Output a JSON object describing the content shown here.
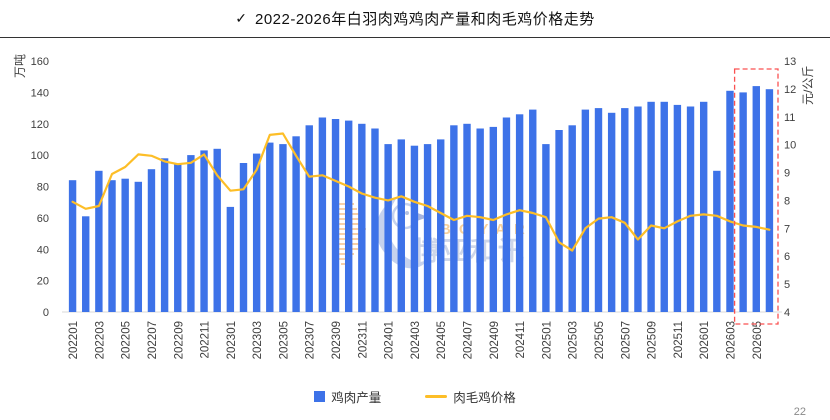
{
  "header": {
    "check": "✓",
    "title": "2022-2026年白羽肉鸡鸡肉产量和肉毛鸡价格走势"
  },
  "watermark": {
    "brand_en": "BOYAR",
    "brand_cn": "博亚和讯"
  },
  "page_number": "22",
  "chart_data": {
    "type": "bar",
    "title": "2022-2026年白羽肉鸡鸡肉产量和肉毛鸡价格走势",
    "categories": [
      "202201",
      "202202",
      "202203",
      "202204",
      "202205",
      "202206",
      "202207",
      "202208",
      "202209",
      "202210",
      "202211",
      "202212",
      "202301",
      "202302",
      "202303",
      "202304",
      "202305",
      "202306",
      "202307",
      "202308",
      "202309",
      "202310",
      "202311",
      "202312",
      "202401",
      "202402",
      "202403",
      "202404",
      "202405",
      "202406",
      "202407",
      "202408",
      "202409",
      "202410",
      "202411",
      "202412",
      "202501",
      "202502",
      "202503",
      "202504",
      "202505",
      "202506",
      "202507",
      "202508",
      "202509",
      "202510",
      "202511",
      "202512",
      "202601",
      "202602",
      "202603",
      "202604",
      "202605",
      "202606"
    ],
    "x_tick_every": 2,
    "series": [
      {
        "name": "鸡肉产量",
        "type": "bar",
        "axis": "left",
        "unit": "万吨",
        "color": "#3D72E8",
        "values": [
          84,
          61,
          90,
          84,
          85,
          83,
          91,
          98,
          94,
          100,
          103,
          104,
          67,
          95,
          101,
          108,
          107,
          112,
          119,
          124,
          123,
          122,
          120,
          117,
          107,
          110,
          106,
          107,
          110,
          119,
          120,
          117,
          118,
          124,
          126,
          129,
          107,
          116,
          119,
          129,
          130,
          127,
          130,
          131,
          134,
          134,
          132,
          131,
          134,
          90,
          141,
          140,
          144,
          142
        ]
      },
      {
        "name": "肉毛鸡价格",
        "type": "line",
        "axis": "right",
        "unit": "元/公斤",
        "color": "#FDBE27",
        "values": [
          7.95,
          7.7,
          7.8,
          8.95,
          9.2,
          9.65,
          9.6,
          9.4,
          9.3,
          9.35,
          9.65,
          8.9,
          8.35,
          8.4,
          9.1,
          10.35,
          10.4,
          9.6,
          8.85,
          8.9,
          8.7,
          8.5,
          8.25,
          8.1,
          8.0,
          8.15,
          7.95,
          7.8,
          7.55,
          7.3,
          7.45,
          7.4,
          7.3,
          7.5,
          7.65,
          7.55,
          7.4,
          6.5,
          6.2,
          7.0,
          7.35,
          7.4,
          7.2,
          6.6,
          7.1,
          7.0,
          7.25,
          7.45,
          7.5,
          7.45,
          7.25,
          7.1,
          7.05,
          6.95
        ]
      }
    ],
    "left_axis": {
      "label": "万吨",
      "min": 0,
      "max": 160,
      "step": 20
    },
    "right_axis": {
      "label": "元/公斤",
      "min": 4,
      "max": 13,
      "step": 1
    },
    "grid": false,
    "legend_position": "bottom",
    "highlight_box": {
      "from": "202604",
      "to": "202606",
      "color": "#FA5151",
      "style": "dashed"
    }
  }
}
